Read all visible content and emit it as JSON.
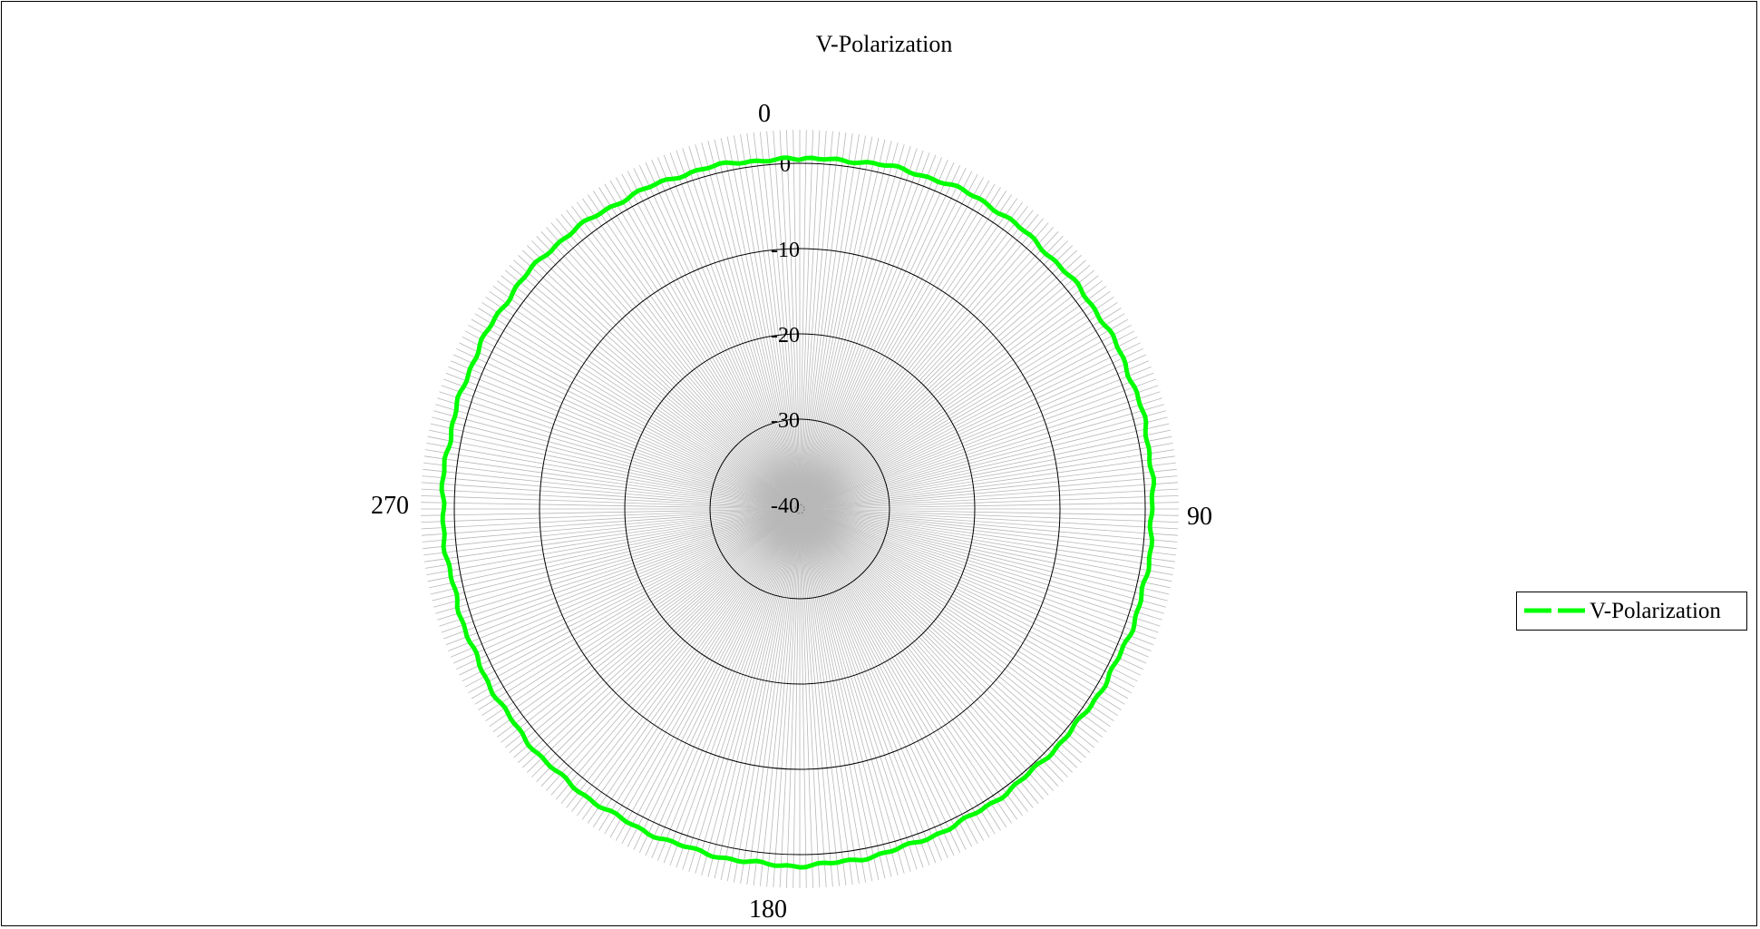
{
  "chart_data": {
    "type": "polar-line",
    "title": "V-Polarization",
    "angle_labels": [
      "0",
      "90",
      "180",
      "270"
    ],
    "radial_ticks": [
      "0",
      "-10",
      "-20",
      "-30",
      "-40"
    ],
    "radial_range": [
      -40,
      0
    ],
    "legend": {
      "position": "right",
      "entries": [
        "V-Polarization"
      ]
    },
    "series": [
      {
        "name": "V-Polarization",
        "color": "#00ff00",
        "style": "dashed",
        "angles_deg": [
          0,
          15,
          30,
          45,
          60,
          75,
          90,
          105,
          120,
          135,
          150,
          165,
          180,
          195,
          210,
          225,
          240,
          255,
          270,
          285,
          300,
          315,
          330,
          345,
          360
        ],
        "values": [
          0.4,
          1.0,
          1.5,
          1.2,
          1.3,
          1.2,
          0.8,
          0.9,
          0.7,
          0.5,
          0.7,
          1.0,
          1.3,
          1.3,
          1.4,
          1.5,
          1.3,
          1.1,
          1.4,
          1.4,
          1.6,
          1.7,
          1.2,
          0.9,
          0.4
        ]
      }
    ]
  }
}
